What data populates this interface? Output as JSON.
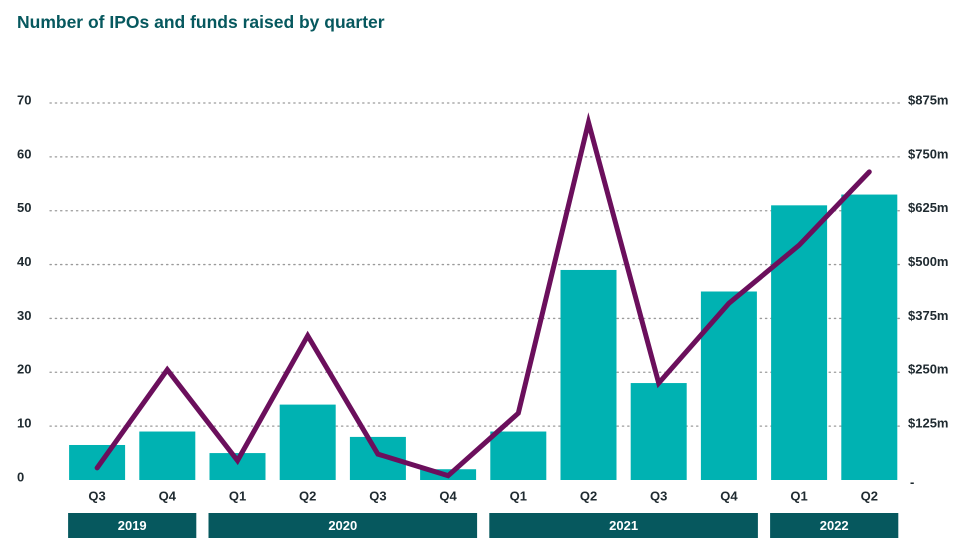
{
  "title": "Number of IPOs and funds raised by quarter",
  "colors": {
    "bar": "#00b2b2",
    "line": "#6b0f5c",
    "grid": "#9a9a9a",
    "year_band": "#06585e",
    "title": "#06585e",
    "tick_text": "#1f2a30"
  },
  "chart_data": {
    "type": "bar",
    "categories": [
      "Q3",
      "Q4",
      "Q1",
      "Q2",
      "Q3",
      "Q4",
      "Q1",
      "Q2",
      "Q3",
      "Q4",
      "Q1",
      "Q2"
    ],
    "year_groups": [
      {
        "label": "2019",
        "start": 0,
        "end": 1
      },
      {
        "label": "2020",
        "start": 2,
        "end": 5
      },
      {
        "label": "2021",
        "start": 6,
        "end": 9
      },
      {
        "label": "2022",
        "start": 10,
        "end": 11
      }
    ],
    "series": [
      {
        "type": "bar",
        "axis": "left",
        "values": [
          6.5,
          9,
          5,
          14,
          8,
          2,
          9,
          39,
          18,
          35,
          51,
          53
        ]
      },
      {
        "type": "line",
        "axis": "right",
        "values": [
          28,
          256,
          45,
          335,
          60,
          10,
          155,
          830,
          225,
          410,
          545,
          715
        ]
      }
    ],
    "y_left": {
      "ticks": [
        0,
        10,
        20,
        30,
        40,
        50,
        60,
        70
      ],
      "labels": [
        "0",
        "10",
        "20",
        "30",
        "40",
        "50",
        "60",
        "70"
      ],
      "ylim": [
        0,
        70
      ]
    },
    "y_right": {
      "ticks": [
        0,
        125,
        250,
        375,
        500,
        625,
        750,
        875
      ],
      "labels": [
        "-",
        "$125m",
        "$250m",
        "$375m",
        "$500m",
        "$625m",
        "$750m",
        "$875m"
      ],
      "ylim": [
        0,
        875
      ]
    },
    "grid": true,
    "xlabel": "",
    "ylabel": ""
  }
}
